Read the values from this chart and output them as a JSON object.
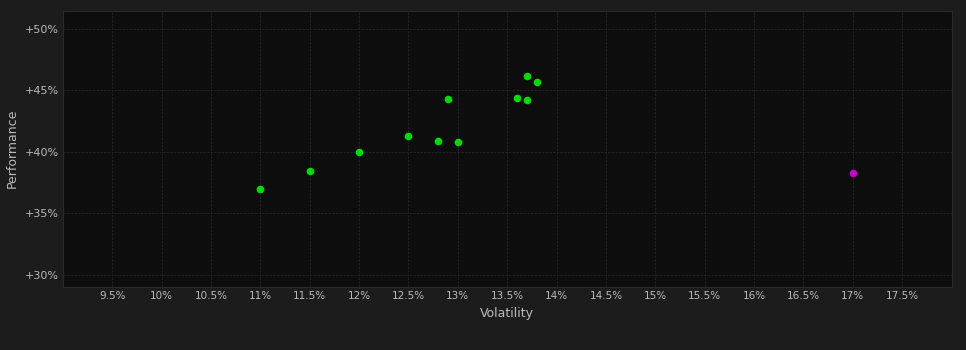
{
  "background_color": "#1c1c1c",
  "plot_bg_color": "#0d0d0d",
  "grid_color": "#2a2a2a",
  "text_color": "#bbbbbb",
  "xlabel": "Volatility",
  "ylabel": "Performance",
  "xlim": [
    0.09,
    0.18
  ],
  "ylim": [
    0.29,
    0.515
  ],
  "xticks": [
    0.095,
    0.1,
    0.105,
    0.11,
    0.115,
    0.12,
    0.125,
    0.13,
    0.135,
    0.14,
    0.145,
    0.15,
    0.155,
    0.16,
    0.165,
    0.17,
    0.175
  ],
  "yticks": [
    0.3,
    0.35,
    0.4,
    0.45,
    0.5
  ],
  "xtick_labels": [
    "9.5%",
    "10%",
    "10.5%",
    "11%",
    "11.5%",
    "12%",
    "12.5%",
    "13%",
    "13.5%",
    "14%",
    "14.5%",
    "15%",
    "15.5%",
    "16%",
    "16.5%",
    "17%",
    "17.5%"
  ],
  "ytick_labels": [
    "+30%",
    "+35%",
    "+40%",
    "+45%",
    "+50%"
  ],
  "green_points": [
    [
      0.11,
      0.37
    ],
    [
      0.115,
      0.384
    ],
    [
      0.12,
      0.4
    ],
    [
      0.125,
      0.413
    ],
    [
      0.128,
      0.409
    ],
    [
      0.129,
      0.443
    ],
    [
      0.13,
      0.408
    ],
    [
      0.136,
      0.444
    ],
    [
      0.137,
      0.442
    ],
    [
      0.137,
      0.462
    ],
    [
      0.138,
      0.457
    ]
  ],
  "magenta_points": [
    [
      0.17,
      0.383
    ]
  ],
  "green_color": "#00dd00",
  "magenta_color": "#cc00cc",
  "marker_size": 30
}
